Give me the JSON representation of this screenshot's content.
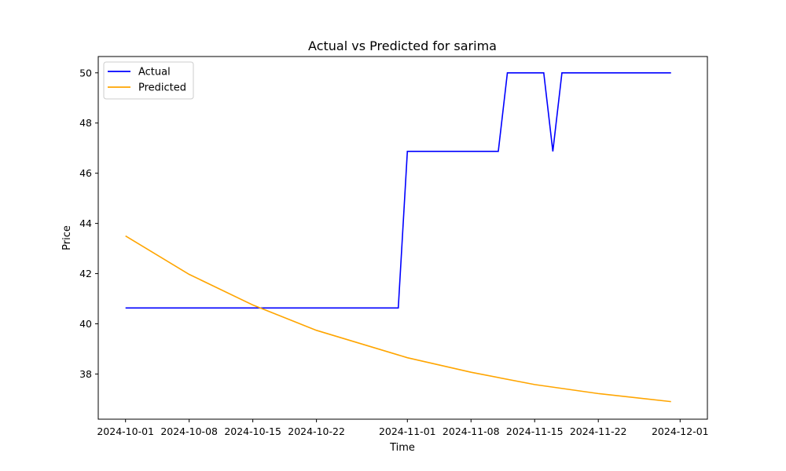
{
  "chart_data": {
    "type": "line",
    "title": "Actual vs Predicted for sarima",
    "xlabel": "Time",
    "ylabel": "Price",
    "x_ticks": [
      "2024-10-01",
      "2024-10-08",
      "2024-10-15",
      "2024-10-22",
      "2024-11-01",
      "2024-11-08",
      "2024-11-15",
      "2024-11-22",
      "2024-12-01"
    ],
    "y_ticks": [
      38,
      40,
      42,
      44,
      46,
      48,
      50
    ],
    "xlim": [
      "2024-09-28",
      "2024-12-04"
    ],
    "ylim": [
      36.2,
      50.65
    ],
    "grid": false,
    "legend_position": "top-left",
    "series": [
      {
        "name": "Actual",
        "color": "#0000ff",
        "points": [
          [
            "2024-10-01",
            40.63
          ],
          [
            "2024-10-31",
            40.63
          ],
          [
            "2024-11-01",
            46.87
          ],
          [
            "2024-11-11",
            46.87
          ],
          [
            "2024-11-12",
            50.0
          ],
          [
            "2024-11-16",
            50.0
          ],
          [
            "2024-11-17",
            46.87
          ],
          [
            "2024-11-18",
            50.0
          ],
          [
            "2024-11-30",
            50.0
          ]
        ]
      },
      {
        "name": "Predicted",
        "color": "#ffa500",
        "points": [
          [
            "2024-10-01",
            43.5
          ],
          [
            "2024-10-08",
            41.97
          ],
          [
            "2024-10-15",
            40.75
          ],
          [
            "2024-10-22",
            39.74
          ],
          [
            "2024-11-01",
            38.65
          ],
          [
            "2024-11-08",
            38.07
          ],
          [
            "2024-11-15",
            37.58
          ],
          [
            "2024-11-22",
            37.22
          ],
          [
            "2024-11-30",
            36.9
          ]
        ]
      }
    ]
  }
}
